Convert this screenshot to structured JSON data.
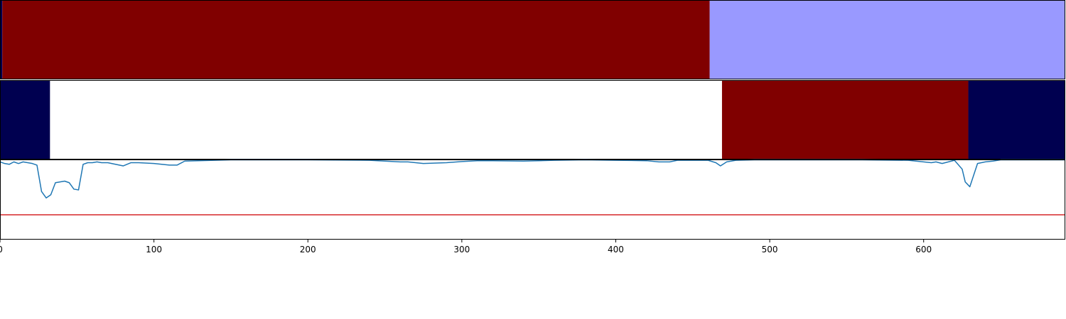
{
  "chart_data": [
    {
      "type": "heatmap",
      "panel": "top",
      "segments": [
        {
          "start": 0,
          "end": 1.5,
          "color": "#000050"
        },
        {
          "start": 1.5,
          "end": 461,
          "color": "#800000"
        },
        {
          "start": 461,
          "end": 692,
          "color": "#9999ff"
        }
      ]
    },
    {
      "type": "heatmap",
      "panel": "middle",
      "segments": [
        {
          "start": 0,
          "end": 32.5,
          "color": "#000050"
        },
        {
          "start": 32.5,
          "end": 469,
          "color": "#ffffff"
        },
        {
          "start": 469,
          "end": 629,
          "color": "#800000"
        },
        {
          "start": 629,
          "end": 692,
          "color": "#000050"
        }
      ]
    },
    {
      "type": "line",
      "panel": "bottom",
      "xlim": [
        0,
        692
      ],
      "ylim": [
        0,
        1
      ],
      "xticks": [
        0,
        100,
        200,
        300,
        400,
        500,
        600
      ],
      "threshold": {
        "value": 0.31,
        "color": "#d62728"
      },
      "series": [
        {
          "color": "#1f77b4",
          "x": [
            0,
            3,
            6,
            9,
            12,
            15,
            18,
            21,
            24,
            27,
            30,
            33,
            36,
            39,
            42,
            45,
            48,
            51,
            54,
            57,
            60,
            63,
            66,
            70,
            80,
            85,
            90,
            100,
            110,
            115,
            120,
            150,
            200,
            240,
            260,
            265,
            275,
            290,
            300,
            310,
            320,
            340,
            360,
            380,
            400,
            420,
            428,
            435,
            440,
            450,
            460,
            465,
            468,
            472,
            478,
            490,
            500,
            520,
            560,
            590,
            600,
            605,
            608,
            612,
            620,
            625,
            627,
            630,
            635,
            640,
            645,
            650,
            660,
            692
          ],
          "y": [
            0.97,
            0.95,
            0.94,
            0.97,
            0.95,
            0.97,
            0.96,
            0.95,
            0.93,
            0.6,
            0.52,
            0.56,
            0.71,
            0.72,
            0.73,
            0.71,
            0.63,
            0.62,
            0.94,
            0.96,
            0.96,
            0.97,
            0.96,
            0.96,
            0.92,
            0.96,
            0.96,
            0.95,
            0.93,
            0.93,
            0.98,
            0.995,
            0.995,
            0.99,
            0.97,
            0.97,
            0.95,
            0.96,
            0.975,
            0.985,
            0.985,
            0.98,
            0.99,
            0.995,
            0.99,
            0.985,
            0.97,
            0.97,
            0.99,
            0.99,
            0.99,
            0.96,
            0.92,
            0.97,
            0.99,
            0.995,
            0.995,
            0.995,
            0.995,
            0.99,
            0.97,
            0.96,
            0.97,
            0.95,
            0.99,
            0.88,
            0.72,
            0.66,
            0.95,
            0.97,
            0.98,
            0.995,
            0.995,
            0.995
          ]
        }
      ]
    }
  ]
}
